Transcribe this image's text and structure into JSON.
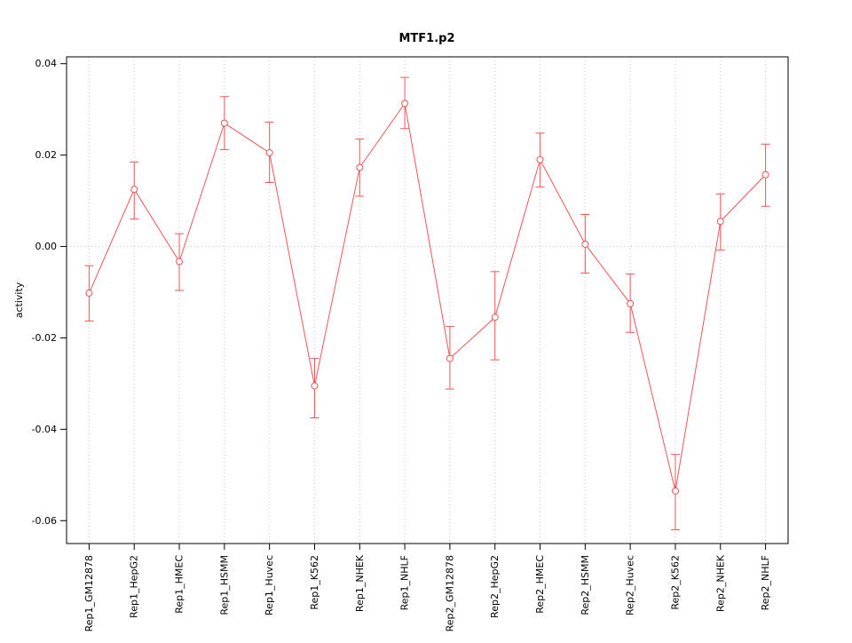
{
  "chart": {
    "title": "MTF1.p2",
    "ylabel": "activity"
  },
  "chart_data": {
    "type": "line",
    "title": "MTF1.p2",
    "xlabel": "",
    "ylabel": "activity",
    "categories": [
      "Rep1_GM12878",
      "Rep1_HepG2",
      "Rep1_HMEC",
      "Rep1_HSMM",
      "Rep1_Huvec",
      "Rep1_K562",
      "Rep1_NHEK",
      "Rep1_NHLF",
      "Rep2_GM12878",
      "Rep2_HepG2",
      "Rep2_HMEC",
      "Rep2_HSMM",
      "Rep2_Huvec",
      "Rep2_K562",
      "Rep2_NHEK",
      "Rep2_NHLF"
    ],
    "series": [
      {
        "name": "activity",
        "marker": "open-circle",
        "values": [
          -0.0102,
          0.0125,
          -0.0033,
          0.027,
          0.0205,
          -0.0305,
          0.0173,
          0.0313,
          -0.0245,
          -0.0155,
          0.019,
          0.0005,
          -0.0125,
          -0.0535,
          0.0055,
          0.0157
        ],
        "err_low": [
          -0.0163,
          0.006,
          -0.0096,
          0.0212,
          0.014,
          -0.0375,
          0.011,
          0.0258,
          -0.0312,
          -0.0248,
          0.013,
          -0.0058,
          -0.0188,
          -0.062,
          -0.0008,
          0.0088
        ],
        "err_high": [
          -0.0042,
          0.0185,
          0.0028,
          0.0328,
          0.0272,
          -0.0245,
          0.0235,
          0.037,
          -0.0175,
          -0.0055,
          0.0248,
          0.007,
          -0.006,
          -0.0455,
          0.0115,
          0.0224
        ]
      }
    ],
    "ylim": [
      -0.065,
      0.0415
    ],
    "yticks": [
      -0.06,
      -0.04,
      -0.02,
      0,
      0.02,
      0.04
    ],
    "grid": "vertical dotted gridline at each category, horizontal dotted line at y=0",
    "legend": "none",
    "line_color": "#ee5555",
    "grid_color": "#c8c8c8",
    "axis_color": "#000000",
    "background": "#ffffff"
  }
}
